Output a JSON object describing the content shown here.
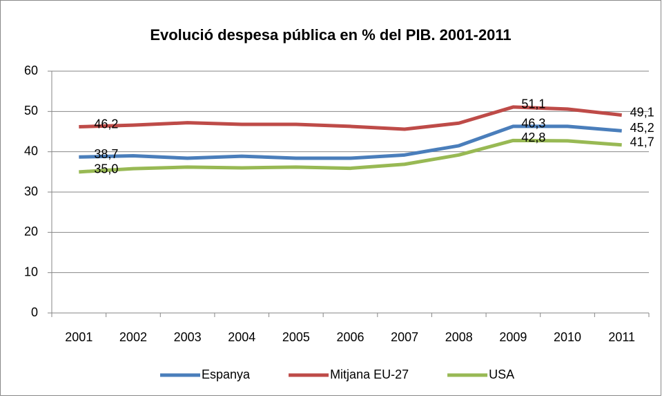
{
  "chart_data": {
    "type": "line",
    "title": "Evolució despesa pública en % del PIB. 2001-2011",
    "categories": [
      "2001",
      "2002",
      "2003",
      "2004",
      "2005",
      "2006",
      "2007",
      "2008",
      "2009",
      "2010",
      "2011"
    ],
    "series": [
      {
        "name": "Espanya",
        "color": "#4a7ebb",
        "values": [
          38.7,
          39.0,
          38.4,
          38.9,
          38.4,
          38.4,
          39.2,
          41.5,
          46.3,
          46.3,
          45.2
        ],
        "value_labels": [
          "38,7",
          null,
          null,
          null,
          null,
          null,
          null,
          null,
          "46,3",
          null,
          "45,2"
        ]
      },
      {
        "name": "Mitjana EU-27",
        "color": "#be4b48",
        "values": [
          46.2,
          46.6,
          47.2,
          46.8,
          46.8,
          46.3,
          45.6,
          47.1,
          51.1,
          50.6,
          49.1
        ],
        "value_labels": [
          "46,2",
          null,
          null,
          null,
          null,
          null,
          null,
          null,
          "51,1",
          null,
          "49,1"
        ]
      },
      {
        "name": "USA",
        "color": "#98b954",
        "values": [
          35.0,
          35.8,
          36.2,
          36.0,
          36.2,
          35.9,
          36.9,
          39.2,
          42.8,
          42.7,
          41.7
        ],
        "value_labels": [
          "35,0",
          null,
          null,
          null,
          null,
          null,
          null,
          null,
          "42,8",
          null,
          "41,7"
        ]
      }
    ],
    "ylim": [
      0,
      60
    ],
    "yticks": [
      0,
      10,
      20,
      30,
      40,
      50,
      60
    ],
    "grid": true,
    "legend": "bottom"
  }
}
